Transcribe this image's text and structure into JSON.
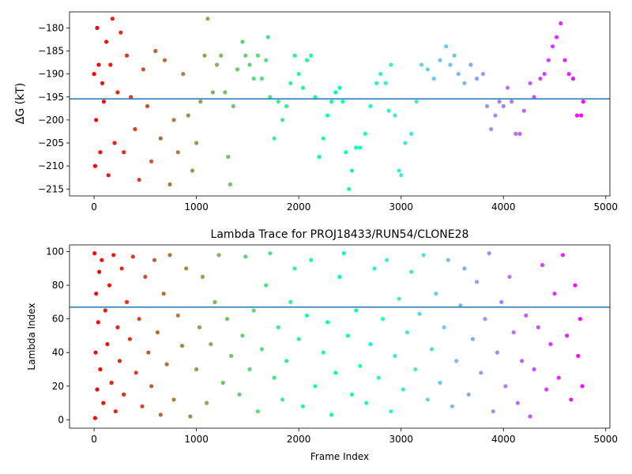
{
  "chart_data": [
    {
      "type": "scatter",
      "title": "",
      "xlabel": "",
      "ylabel": "ΔG (kT)",
      "xlim": [
        -240,
        5040
      ],
      "ylim": [
        -216.5,
        -176.5
      ],
      "xticks": [
        0,
        1000,
        2000,
        3000,
        4000,
        5000
      ],
      "xtick_labels": [
        "0",
        "1000",
        "2000",
        "3000",
        "4000",
        "5000"
      ],
      "yticks": [
        -215,
        -210,
        -205,
        -200,
        -195,
        -190,
        -185,
        -180
      ],
      "ytick_labels": [
        "−215",
        "−210",
        "−205",
        "−200",
        "−195",
        "−190",
        "−185",
        "−180"
      ],
      "hline": {
        "y": -195.4,
        "color": "#1f77b4"
      },
      "colormap": "rainbow (red at frame 0 → violet at frame 4800)",
      "series": [
        {
          "marker": "dot",
          "points": [
            [
              0,
              -190
            ],
            [
              10,
              -210
            ],
            [
              20,
              -200
            ],
            [
              30,
              -180
            ],
            [
              45,
              -188
            ],
            [
              60,
              -207
            ],
            [
              80,
              -192
            ],
            [
              95,
              -196
            ],
            [
              120,
              -183
            ],
            [
              140,
              -212
            ],
            [
              160,
              -188
            ],
            [
              180,
              -178
            ],
            [
              200,
              -205
            ],
            [
              230,
              -194
            ],
            [
              260,
              -181
            ],
            [
              290,
              -207
            ],
            [
              320,
              -186
            ],
            [
              360,
              -195
            ],
            [
              400,
              -202
            ],
            [
              440,
              -213
            ],
            [
              480,
              -189
            ],
            [
              520,
              -197
            ],
            [
              560,
              -209
            ],
            [
              600,
              -185
            ],
            [
              650,
              -204
            ],
            [
              690,
              -187
            ],
            [
              740,
              -214
            ],
            [
              780,
              -200
            ],
            [
              820,
              -207
            ],
            [
              870,
              -190
            ],
            [
              920,
              -199
            ],
            [
              960,
              -211
            ],
            [
              1000,
              -205
            ],
            [
              1040,
              -196
            ],
            [
              1080,
              -186
            ],
            [
              1110,
              -178
            ],
            [
              1160,
              -194
            ],
            [
              1200,
              -188
            ],
            [
              1240,
              -186
            ],
            [
              1280,
              -194
            ],
            [
              1310,
              -208
            ],
            [
              1330,
              -214
            ],
            [
              1360,
              -197
            ],
            [
              1400,
              -189
            ],
            [
              1450,
              -183
            ],
            [
              1480,
              -186
            ],
            [
              1520,
              -188
            ],
            [
              1560,
              -191
            ],
            [
              1600,
              -186
            ],
            [
              1640,
              -191
            ],
            [
              1680,
              -187
            ],
            [
              1700,
              -182
            ],
            [
              1720,
              -195
            ],
            [
              1760,
              -204
            ],
            [
              1800,
              -196
            ],
            [
              1840,
              -200
            ],
            [
              1880,
              -197
            ],
            [
              1920,
              -192
            ],
            [
              1960,
              -186
            ],
            [
              2000,
              -190
            ],
            [
              2040,
              -193
            ],
            [
              2080,
              -187
            ],
            [
              2120,
              -186
            ],
            [
              2160,
              -195
            ],
            [
              2200,
              -208
            ],
            [
              2240,
              -204
            ],
            [
              2280,
              -199
            ],
            [
              2320,
              -196
            ],
            [
              2360,
              -194
            ],
            [
              2400,
              -193
            ],
            [
              2430,
              -196
            ],
            [
              2460,
              -207
            ],
            [
              2490,
              -215
            ],
            [
              2520,
              -211
            ],
            [
              2560,
              -206
            ],
            [
              2600,
              -206
            ],
            [
              2650,
              -203
            ],
            [
              2700,
              -197
            ],
            [
              2760,
              -192
            ],
            [
              2800,
              -190
            ],
            [
              2850,
              -192
            ],
            [
              2880,
              -198
            ],
            [
              2900,
              -188
            ],
            [
              2940,
              -199
            ],
            [
              2980,
              -211
            ],
            [
              3000,
              -212
            ],
            [
              3040,
              -205
            ],
            [
              3100,
              -203
            ],
            [
              3150,
              -196
            ],
            [
              3200,
              -188
            ],
            [
              3260,
              -189
            ],
            [
              3320,
              -191
            ],
            [
              3380,
              -187
            ],
            [
              3440,
              -184
            ],
            [
              3480,
              -188
            ],
            [
              3520,
              -186
            ],
            [
              3560,
              -190
            ],
            [
              3620,
              -192
            ],
            [
              3680,
              -188
            ],
            [
              3740,
              -191
            ],
            [
              3800,
              -190
            ],
            [
              3840,
              -197
            ],
            [
              3880,
              -202
            ],
            [
              3920,
              -199
            ],
            [
              3960,
              -196
            ],
            [
              4000,
              -197
            ],
            [
              4040,
              -193
            ],
            [
              4080,
              -196
            ],
            [
              4120,
              -203
            ],
            [
              4160,
              -203
            ],
            [
              4200,
              -198
            ],
            [
              4260,
              -192
            ],
            [
              4300,
              -195
            ],
            [
              4360,
              -191
            ],
            [
              4400,
              -190
            ],
            [
              4440,
              -187
            ],
            [
              4480,
              -184
            ],
            [
              4520,
              -182
            ],
            [
              4560,
              -179
            ],
            [
              4600,
              -187
            ],
            [
              4640,
              -190
            ],
            [
              4680,
              -191
            ],
            [
              4720,
              -199
            ],
            [
              4760,
              -199
            ],
            [
              4780,
              -196
            ]
          ]
        }
      ]
    },
    {
      "type": "scatter",
      "title": "Lambda Trace for PROJ18433/RUN54/CLONE28",
      "xlabel": "Frame Index",
      "ylabel": "Lambda Index",
      "xlim": [
        -240,
        5040
      ],
      "ylim": [
        -5,
        104
      ],
      "xticks": [
        0,
        1000,
        2000,
        3000,
        4000,
        5000
      ],
      "xtick_labels": [
        "0",
        "1000",
        "2000",
        "3000",
        "4000",
        "5000"
      ],
      "yticks": [
        0,
        20,
        40,
        60,
        80,
        100
      ],
      "ytick_labels": [
        "0",
        "20",
        "40",
        "60",
        "80",
        "100"
      ],
      "hline": {
        "y": 67,
        "color": "#1f77b4"
      },
      "colormap": "rainbow (red at frame 0 → violet at frame 4800)",
      "series": [
        {
          "marker": "dot",
          "points": [
            [
              5,
              99
            ],
            [
              10,
              1
            ],
            [
              15,
              40
            ],
            [
              20,
              75
            ],
            [
              30,
              18
            ],
            [
              40,
              58
            ],
            [
              50,
              88
            ],
            [
              60,
              30
            ],
            [
              75,
              95
            ],
            [
              90,
              10
            ],
            [
              110,
              65
            ],
            [
              130,
              45
            ],
            [
              150,
              80
            ],
            [
              170,
              22
            ],
            [
              190,
              98
            ],
            [
              210,
              5
            ],
            [
              230,
              55
            ],
            [
              250,
              35
            ],
            [
              270,
              90
            ],
            [
              290,
              15
            ],
            [
              320,
              70
            ],
            [
              350,
              48
            ],
            [
              380,
              97
            ],
            [
              410,
              28
            ],
            [
              440,
              60
            ],
            [
              470,
              8
            ],
            [
              500,
              85
            ],
            [
              530,
              40
            ],
            [
              560,
              20
            ],
            [
              590,
              95
            ],
            [
              620,
              52
            ],
            [
              650,
              3
            ],
            [
              680,
              75
            ],
            [
              710,
              33
            ],
            [
              740,
              98
            ],
            [
              780,
              12
            ],
            [
              820,
              62
            ],
            [
              860,
              44
            ],
            [
              900,
              90
            ],
            [
              940,
              2
            ],
            [
              1000,
              30
            ],
            [
              1030,
              55
            ],
            [
              1060,
              85
            ],
            [
              1100,
              10
            ],
            [
              1140,
              45
            ],
            [
              1180,
              70
            ],
            [
              1220,
              98
            ],
            [
              1260,
              22
            ],
            [
              1300,
              60
            ],
            [
              1340,
              38
            ],
            [
              1420,
              15
            ],
            [
              1450,
              50
            ],
            [
              1480,
              97
            ],
            [
              1520,
              30
            ],
            [
              1560,
              65
            ],
            [
              1600,
              5
            ],
            [
              1640,
              42
            ],
            [
              1680,
              80
            ],
            [
              1720,
              99
            ],
            [
              1760,
              25
            ],
            [
              1800,
              55
            ],
            [
              1840,
              12
            ],
            [
              1880,
              35
            ],
            [
              1920,
              70
            ],
            [
              1960,
              90
            ],
            [
              2000,
              48
            ],
            [
              2040,
              8
            ],
            [
              2080,
              62
            ],
            [
              2120,
              95
            ],
            [
              2160,
              20
            ],
            [
              2240,
              40
            ],
            [
              2280,
              58
            ],
            [
              2320,
              3
            ],
            [
              2360,
              28
            ],
            [
              2400,
              85
            ],
            [
              2440,
              99
            ],
            [
              2480,
              50
            ],
            [
              2520,
              15
            ],
            [
              2560,
              65
            ],
            [
              2600,
              32
            ],
            [
              2660,
              10
            ],
            [
              2700,
              45
            ],
            [
              2740,
              90
            ],
            [
              2780,
              25
            ],
            [
              2820,
              60
            ],
            [
              2860,
              95
            ],
            [
              2900,
              5
            ],
            [
              2940,
              38
            ],
            [
              2980,
              72
            ],
            [
              3020,
              18
            ],
            [
              3060,
              52
            ],
            [
              3100,
              88
            ],
            [
              3140,
              30
            ],
            [
              3180,
              63
            ],
            [
              3220,
              98
            ],
            [
              3260,
              12
            ],
            [
              3300,
              42
            ],
            [
              3340,
              75
            ],
            [
              3380,
              22
            ],
            [
              3420,
              55
            ],
            [
              3460,
              95
            ],
            [
              3500,
              8
            ],
            [
              3540,
              35
            ],
            [
              3580,
              68
            ],
            [
              3620,
              90
            ],
            [
              3660,
              15
            ],
            [
              3700,
              48
            ],
            [
              3740,
              82
            ],
            [
              3780,
              28
            ],
            [
              3820,
              60
            ],
            [
              3860,
              99
            ],
            [
              3900,
              5
            ],
            [
              3940,
              40
            ],
            [
              3980,
              70
            ],
            [
              4020,
              20
            ],
            [
              4060,
              85
            ],
            [
              4100,
              52
            ],
            [
              4140,
              10
            ],
            [
              4180,
              35
            ],
            [
              4220,
              62
            ],
            [
              4260,
              2
            ],
            [
              4300,
              30
            ],
            [
              4340,
              55
            ],
            [
              4380,
              92
            ],
            [
              4420,
              18
            ],
            [
              4460,
              45
            ],
            [
              4500,
              75
            ],
            [
              4540,
              25
            ],
            [
              4580,
              98
            ],
            [
              4620,
              50
            ],
            [
              4660,
              12
            ],
            [
              4700,
              80
            ],
            [
              4730,
              38
            ],
            [
              4750,
              60
            ],
            [
              4770,
              20
            ]
          ]
        }
      ]
    }
  ]
}
